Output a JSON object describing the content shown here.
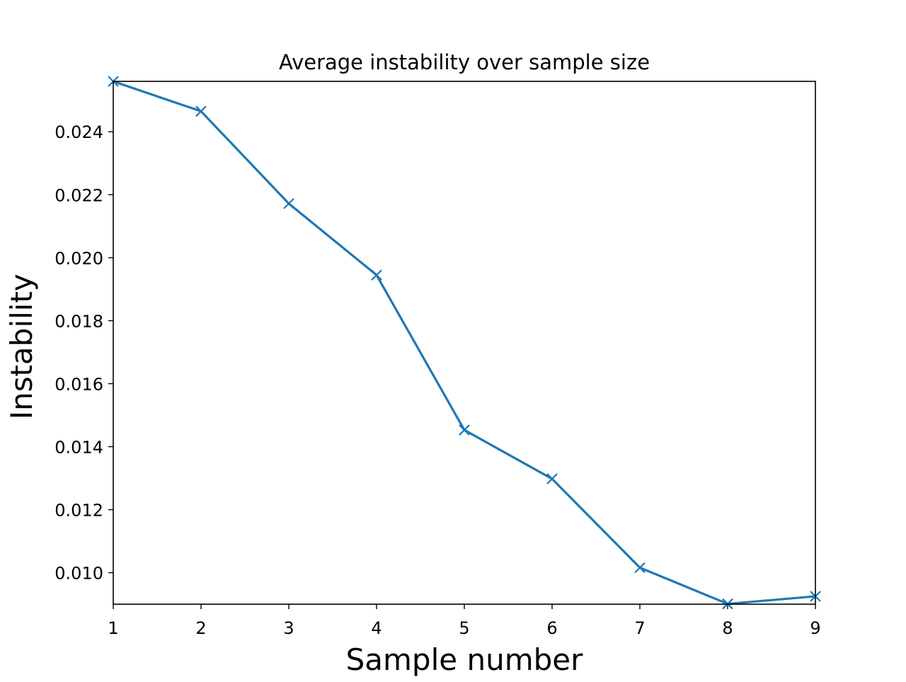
{
  "chart_data": {
    "type": "line",
    "title": "Average instability over sample size",
    "xlabel": "Sample number",
    "ylabel": "Instability",
    "xlim": [
      1,
      9
    ],
    "ylim": [
      0.009,
      0.0256
    ],
    "x_ticks": [
      "1",
      "2",
      "3",
      "4",
      "5",
      "6",
      "7",
      "8",
      "9"
    ],
    "y_ticks": [
      "0.010",
      "0.012",
      "0.014",
      "0.016",
      "0.018",
      "0.020",
      "0.022",
      "0.024"
    ],
    "grid": false,
    "legend": "none",
    "series": [
      {
        "color": "#1f77b4",
        "marker": "x",
        "x": [
          1,
          2,
          3,
          4,
          5,
          6,
          7,
          8,
          9
        ],
        "values": [
          0.0256,
          0.02465,
          0.02172,
          0.01945,
          0.01453,
          0.01298,
          0.01016,
          0.00901,
          0.00925
        ]
      }
    ]
  }
}
